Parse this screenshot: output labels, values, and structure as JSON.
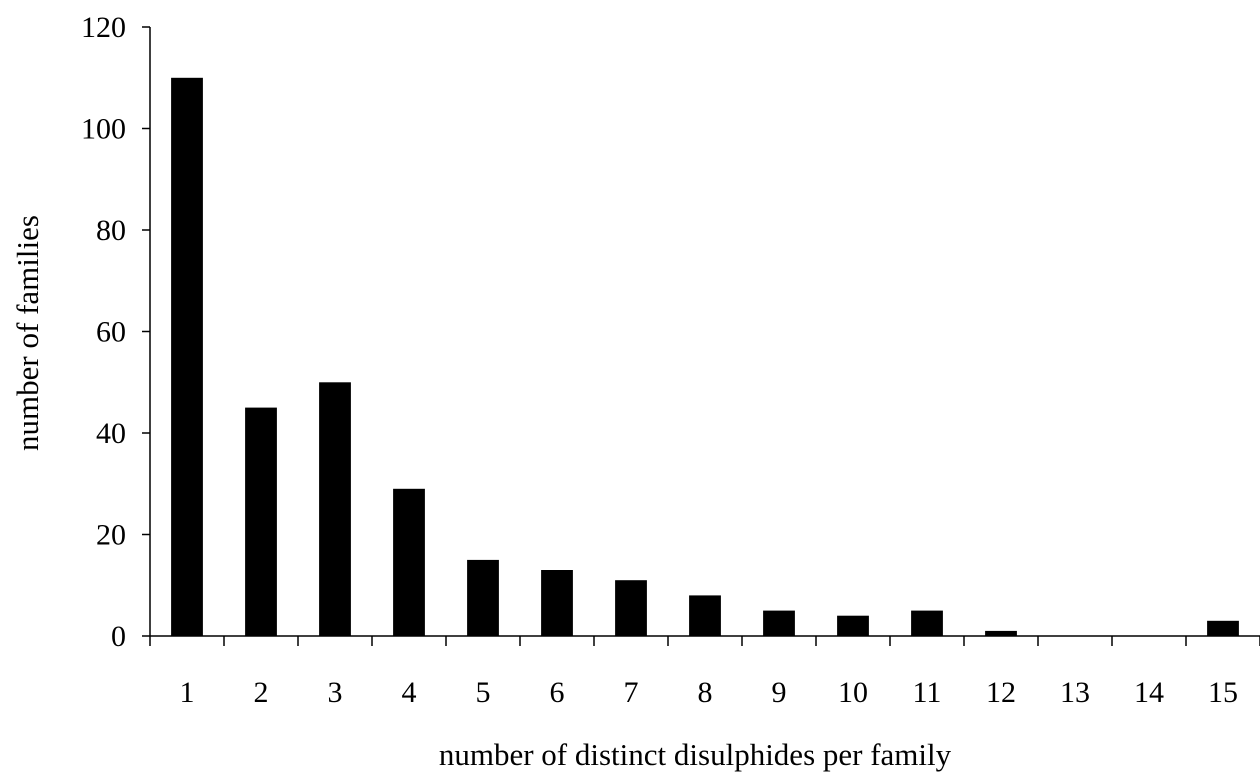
{
  "chart_data": {
    "type": "bar",
    "title": "",
    "xlabel": "number of distinct disulphides per family",
    "ylabel": "number of families",
    "categories": [
      "1",
      "2",
      "3",
      "4",
      "5",
      "6",
      "7",
      "8",
      "9",
      "10",
      "11",
      "12",
      "13",
      "14",
      "15"
    ],
    "values": [
      110,
      45,
      50,
      29,
      15,
      13,
      11,
      8,
      5,
      4,
      5,
      1,
      0,
      0,
      3
    ],
    "ylim": [
      0,
      120
    ],
    "yticks": [
      "0",
      "20",
      "40",
      "60",
      "80",
      "100",
      "120"
    ],
    "grid": false,
    "legend": "none",
    "bar_color": "#000000",
    "axis_color": "#000000"
  }
}
